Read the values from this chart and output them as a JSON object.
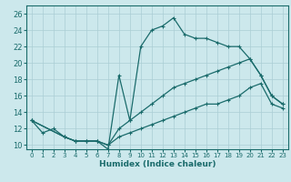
{
  "xlabel": "Humidex (Indice chaleur)",
  "bg_color": "#cce8ec",
  "grid_color": "#aacdd4",
  "line_color": "#1a6b6b",
  "xlim": [
    -0.5,
    23.5
  ],
  "ylim": [
    9.5,
    27
  ],
  "xticks": [
    0,
    1,
    2,
    3,
    4,
    5,
    6,
    7,
    8,
    9,
    10,
    11,
    12,
    13,
    14,
    15,
    16,
    17,
    18,
    19,
    20,
    21,
    22,
    23
  ],
  "yticks": [
    10,
    12,
    14,
    16,
    18,
    20,
    22,
    24,
    26
  ],
  "line1_x": [
    0,
    1,
    2,
    3,
    4,
    5,
    6,
    7,
    8,
    9,
    10,
    11,
    12,
    13,
    14,
    15,
    16,
    17,
    18,
    19,
    20,
    21,
    22,
    23
  ],
  "line1_y": [
    13,
    11.5,
    12,
    11,
    10.5,
    10.5,
    10.5,
    9.5,
    18.5,
    13,
    22,
    24,
    24.5,
    25.5,
    23.5,
    23,
    23,
    22.5,
    22,
    22,
    20.5,
    18.5,
    16,
    15
  ],
  "line2_x": [
    0,
    3,
    4,
    5,
    6,
    7,
    8,
    9,
    10,
    11,
    12,
    13,
    14,
    15,
    16,
    17,
    18,
    19,
    20,
    21,
    22,
    23
  ],
  "line2_y": [
    13,
    11,
    10.5,
    10.5,
    10.5,
    10,
    12,
    13,
    14,
    15,
    16,
    17,
    17.5,
    18,
    18.5,
    19,
    19.5,
    20,
    20.5,
    18.5,
    16,
    15
  ],
  "line3_x": [
    0,
    3,
    4,
    5,
    6,
    7,
    8,
    9,
    10,
    11,
    12,
    13,
    14,
    15,
    16,
    17,
    18,
    19,
    20,
    21,
    22,
    23
  ],
  "line3_y": [
    13,
    11,
    10.5,
    10.5,
    10.5,
    10,
    11,
    11.5,
    12,
    12.5,
    13,
    13.5,
    14,
    14.5,
    15,
    15,
    15.5,
    16,
    17,
    17.5,
    15,
    14.5
  ]
}
